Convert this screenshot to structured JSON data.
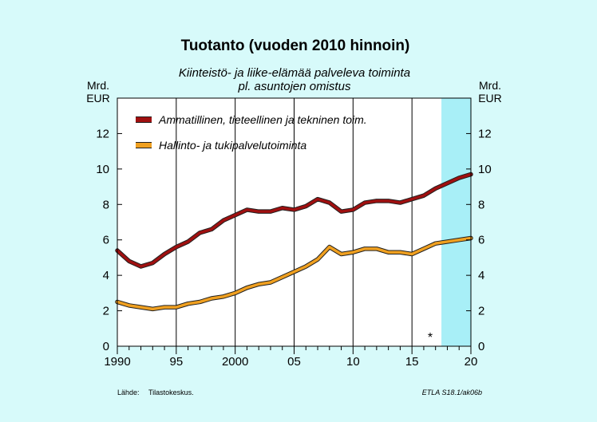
{
  "chart_data": {
    "type": "line",
    "title": "Tuotanto (vuoden 2010 hinnoin)",
    "subtitle_lines": [
      "Kiinteistö- ja liike-elämää palveleva toiminta",
      "pl. asuntojen omistus"
    ],
    "y_unit_left": [
      "Mrd.",
      "EUR"
    ],
    "y_unit_right": [
      "Mrd.",
      "EUR"
    ],
    "x": [
      1990,
      1991,
      1992,
      1993,
      1994,
      1995,
      1996,
      1997,
      1998,
      1999,
      2000,
      2001,
      2002,
      2003,
      2004,
      2005,
      2006,
      2007,
      2008,
      2009,
      2010,
      2011,
      2012,
      2013,
      2014,
      2015,
      2016,
      2017,
      2018,
      2019,
      2020
    ],
    "xlim": [
      1990,
      2020
    ],
    "x_ticks": [
      1990,
      1995,
      2000,
      2005,
      2010,
      2015,
      2020
    ],
    "x_tick_labels": [
      "1990",
      "95",
      "2000",
      "05",
      "10",
      "15",
      "20"
    ],
    "ylim": [
      0,
      14
    ],
    "y_ticks": [
      0,
      2,
      4,
      6,
      8,
      10,
      12
    ],
    "y_tick_labels": [
      "0",
      "2",
      "4",
      "6",
      "8",
      "10",
      "12"
    ],
    "grid": "vertical",
    "forecast_start": 2017.5,
    "forecast_marker": "*",
    "series": [
      {
        "name": "Ammatillinen, tieteellinen ja tekninen toim.",
        "color": "#a01010",
        "values": [
          5.4,
          4.8,
          4.5,
          4.7,
          5.2,
          5.6,
          5.9,
          6.4,
          6.6,
          7.1,
          7.4,
          7.7,
          7.6,
          7.6,
          7.8,
          7.7,
          7.9,
          8.3,
          8.1,
          7.6,
          7.7,
          8.1,
          8.2,
          8.2,
          8.1,
          8.3,
          8.5,
          8.9,
          9.2,
          9.5,
          9.7
        ]
      },
      {
        "name": "Hallinto- ja tukipalvelutoiminta",
        "color": "#f0a020",
        "values": [
          2.5,
          2.3,
          2.2,
          2.1,
          2.2,
          2.2,
          2.4,
          2.5,
          2.7,
          2.8,
          3.0,
          3.3,
          3.5,
          3.6,
          3.9,
          4.2,
          4.5,
          4.9,
          5.6,
          5.2,
          5.3,
          5.5,
          5.5,
          5.3,
          5.3,
          5.2,
          5.5,
          5.8,
          5.9,
          6.0,
          6.1
        ]
      }
    ],
    "source_label": "Lähde:",
    "source_value": "Tilastokeskus.",
    "figure_id": "ETLA S18.1/ak06b"
  },
  "colors": {
    "background": "#d7fafa",
    "plot_area": "#ffffff",
    "forecast_band": "#a8eff7"
  }
}
